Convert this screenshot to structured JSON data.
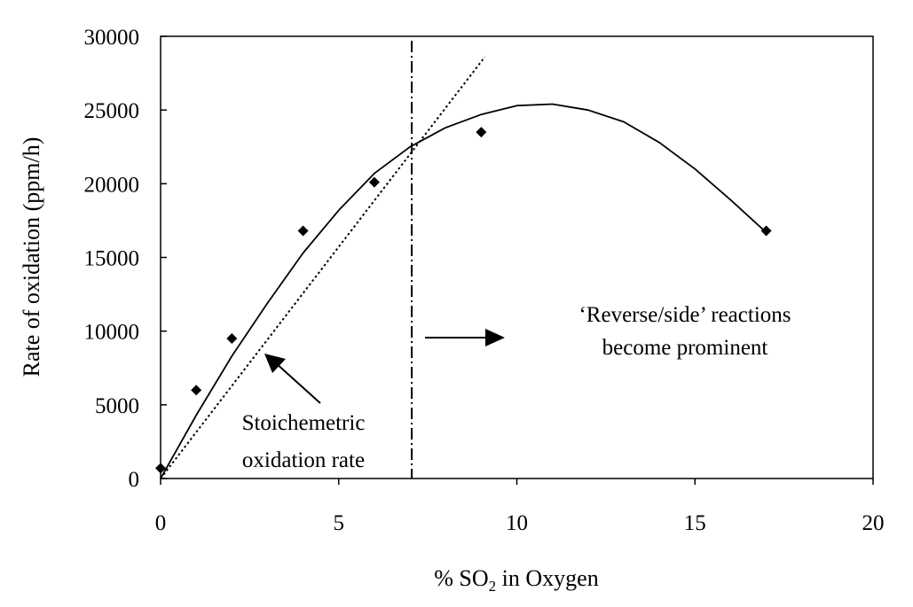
{
  "chart_data": {
    "type": "scatter",
    "xlabel": "% SO2 in Oxygen",
    "xlabel_parts": {
      "prefix": "% SO",
      "subscript": "2",
      "suffix": " in Oxygen"
    },
    "ylabel": "Rate of oxidation (ppm/h)",
    "xlim": [
      0,
      20
    ],
    "ylim": [
      0,
      30000
    ],
    "x_ticks": [
      0,
      5,
      10,
      15,
      20
    ],
    "y_ticks": [
      0,
      5000,
      10000,
      15000,
      20000,
      25000,
      30000
    ],
    "grid": false,
    "series": [
      {
        "kind": "points",
        "marker": "diamond",
        "x": [
          0,
          1,
          2,
          4,
          6,
          9,
          17
        ],
        "y": [
          700,
          6000,
          9500,
          16800,
          20100,
          23500,
          16800
        ]
      },
      {
        "kind": "fitted-curve",
        "style": "solid",
        "x": [
          0,
          1,
          2,
          3,
          4,
          5,
          6,
          7,
          8,
          9,
          10,
          11,
          12,
          13,
          14,
          15,
          16,
          17
        ],
        "y": [
          0,
          4300,
          8300,
          11900,
          15300,
          18200,
          20700,
          22500,
          23800,
          24700,
          25300,
          25400,
          25000,
          24200,
          22800,
          21000,
          18900,
          16700
        ]
      },
      {
        "kind": "stoichiometric-line",
        "style": "dotted",
        "x": [
          0,
          9.1
        ],
        "y": [
          0,
          28600
        ]
      }
    ],
    "vertical_line": {
      "x": 7.05,
      "style": "dash-dot"
    },
    "annotations": {
      "stoich_line1": "Stoichemetric",
      "stoich_line2": "oxidation rate",
      "reverse_line1": "‘Reverse/side’ reactions",
      "reverse_line2": "become prominent"
    }
  }
}
